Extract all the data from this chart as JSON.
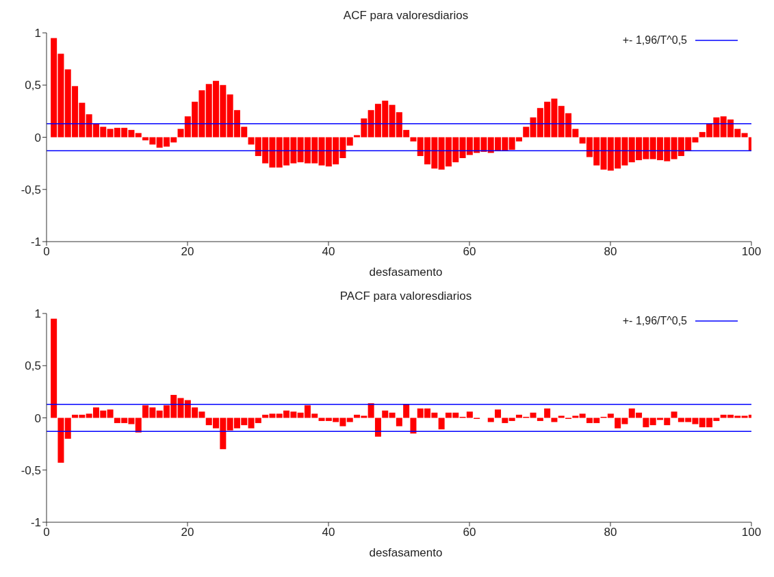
{
  "chart_data": [
    {
      "type": "bar",
      "title": "ACF para valoresdiarios",
      "xlabel": "desfasamento",
      "x": [
        1,
        2,
        3,
        4,
        5,
        6,
        7,
        8,
        9,
        10,
        11,
        12,
        13,
        14,
        15,
        16,
        17,
        18,
        19,
        20,
        21,
        22,
        23,
        24,
        25,
        26,
        27,
        28,
        29,
        30,
        31,
        32,
        33,
        34,
        35,
        36,
        37,
        38,
        39,
        40,
        41,
        42,
        43,
        44,
        45,
        46,
        47,
        48,
        49,
        50,
        51,
        52,
        53,
        54,
        55,
        56,
        57,
        58,
        59,
        60,
        61,
        62,
        63,
        64,
        65,
        66,
        67,
        68,
        69,
        70,
        71,
        72,
        73,
        74,
        75,
        76,
        77,
        78,
        79,
        80,
        81,
        82,
        83,
        84,
        85,
        86,
        87,
        88,
        89,
        90,
        91,
        92,
        93,
        94,
        95,
        96,
        97,
        98,
        99,
        100
      ],
      "values": [
        0.95,
        0.8,
        0.65,
        0.49,
        0.33,
        0.22,
        0.13,
        0.1,
        0.08,
        0.09,
        0.09,
        0.07,
        0.04,
        -0.03,
        -0.07,
        -0.1,
        -0.09,
        -0.05,
        0.08,
        0.2,
        0.34,
        0.45,
        0.51,
        0.54,
        0.5,
        0.41,
        0.26,
        0.1,
        -0.07,
        -0.18,
        -0.25,
        -0.29,
        -0.29,
        -0.27,
        -0.25,
        -0.24,
        -0.25,
        -0.25,
        -0.27,
        -0.28,
        -0.26,
        -0.2,
        -0.08,
        0.02,
        0.18,
        0.26,
        0.32,
        0.35,
        0.31,
        0.24,
        0.07,
        -0.04,
        -0.18,
        -0.26,
        -0.3,
        -0.31,
        -0.28,
        -0.24,
        -0.2,
        -0.17,
        -0.15,
        -0.14,
        -0.15,
        -0.13,
        -0.13,
        -0.12,
        -0.04,
        0.1,
        0.19,
        0.28,
        0.34,
        0.37,
        0.3,
        0.23,
        0.08,
        -0.06,
        -0.19,
        -0.27,
        -0.31,
        -0.32,
        -0.3,
        -0.27,
        -0.24,
        -0.22,
        -0.21,
        -0.21,
        -0.22,
        -0.23,
        -0.21,
        -0.18,
        -0.13,
        -0.05,
        0.05,
        0.13,
        0.19,
        0.2,
        0.17,
        0.08,
        0.04,
        -0.13
      ],
      "color": "#ff0000",
      "xlim": [
        0,
        100
      ],
      "xticks": [
        0,
        20,
        40,
        60,
        80,
        100
      ],
      "ylim": [
        -1,
        1
      ],
      "yticks": [
        {
          "value": -1,
          "label": "-1"
        },
        {
          "value": -0.5,
          "label": "-0,5"
        },
        {
          "value": 0,
          "label": "0"
        },
        {
          "value": 0.5,
          "label": "0,5"
        },
        {
          "value": 1,
          "label": "1"
        }
      ],
      "ref_lines": [
        {
          "axis": "y",
          "value": 0.13,
          "label": "+- 1,96/T^0,5",
          "color": "#0000ff"
        },
        {
          "axis": "y",
          "value": -0.13,
          "color": "#0000ff"
        }
      ],
      "legend": "top right",
      "grid": false
    },
    {
      "type": "bar",
      "title": "PACF para valoresdiarios",
      "xlabel": "desfasamento",
      "x": [
        1,
        2,
        3,
        4,
        5,
        6,
        7,
        8,
        9,
        10,
        11,
        12,
        13,
        14,
        15,
        16,
        17,
        18,
        19,
        20,
        21,
        22,
        23,
        24,
        25,
        26,
        27,
        28,
        29,
        30,
        31,
        32,
        33,
        34,
        35,
        36,
        37,
        38,
        39,
        40,
        41,
        42,
        43,
        44,
        45,
        46,
        47,
        48,
        49,
        50,
        51,
        52,
        53,
        54,
        55,
        56,
        57,
        58,
        59,
        60,
        61,
        62,
        63,
        64,
        65,
        66,
        67,
        68,
        69,
        70,
        71,
        72,
        73,
        74,
        75,
        76,
        77,
        78,
        79,
        80,
        81,
        82,
        83,
        84,
        85,
        86,
        87,
        88,
        89,
        90,
        91,
        92,
        93,
        94,
        95,
        96,
        97,
        98,
        99,
        100
      ],
      "values": [
        0.95,
        -0.43,
        -0.2,
        0.03,
        0.03,
        0.04,
        0.1,
        0.07,
        0.08,
        -0.05,
        -0.05,
        -0.06,
        -0.14,
        0.12,
        0.1,
        0.07,
        0.12,
        0.22,
        0.19,
        0.17,
        0.1,
        0.06,
        -0.07,
        -0.1,
        -0.3,
        -0.12,
        -0.1,
        -0.07,
        -0.1,
        -0.05,
        0.03,
        0.04,
        0.04,
        0.07,
        0.06,
        0.05,
        0.12,
        0.04,
        -0.03,
        -0.03,
        -0.04,
        -0.08,
        -0.04,
        0.03,
        0.02,
        0.14,
        -0.18,
        0.07,
        0.05,
        -0.08,
        0.13,
        -0.15,
        0.09,
        0.09,
        0.05,
        -0.11,
        0.05,
        0.05,
        0.01,
        0.06,
        -0.01,
        0,
        -0.04,
        0.08,
        -0.05,
        -0.03,
        0.03,
        0.01,
        0.05,
        -0.03,
        0.09,
        -0.04,
        0.02,
        -0.01,
        0.02,
        0.04,
        -0.05,
        -0.05,
        0.01,
        0.04,
        -0.1,
        -0.06,
        0.09,
        0.05,
        -0.09,
        -0.07,
        -0.02,
        -0.07,
        0.06,
        -0.04,
        -0.04,
        -0.06,
        -0.09,
        -0.09,
        -0.03,
        0.03,
        0.03,
        0.02,
        0.02,
        0.03
      ],
      "color": "#ff0000",
      "xlim": [
        0,
        100
      ],
      "xticks": [
        0,
        20,
        40,
        60,
        80,
        100
      ],
      "ylim": [
        -1,
        1
      ],
      "yticks": [
        {
          "value": -1,
          "label": "-1"
        },
        {
          "value": -0.5,
          "label": "-0,5"
        },
        {
          "value": 0,
          "label": "0"
        },
        {
          "value": 0.5,
          "label": "0,5"
        },
        {
          "value": 1,
          "label": "1"
        }
      ],
      "ref_lines": [
        {
          "axis": "y",
          "value": 0.13,
          "label": "+- 1,96/T^0,5",
          "color": "#0000ff"
        },
        {
          "axis": "y",
          "value": -0.13,
          "color": "#0000ff"
        }
      ],
      "legend": "top right",
      "grid": false
    }
  ]
}
